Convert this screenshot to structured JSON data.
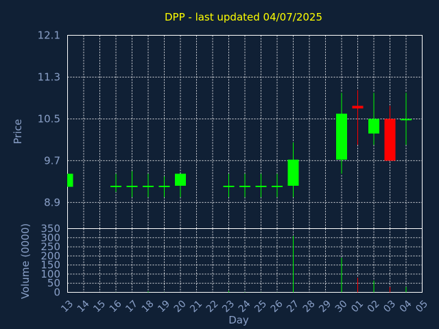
{
  "chart_data": {
    "type": "candlestick",
    "title": "DPP - last updated 04/07/2025",
    "colors": {
      "up": "#00ff00",
      "down": "#ff0000",
      "background": "#102035",
      "title": "#ffff00",
      "axis_text": "#8aa0c8",
      "grid": "#ffffff"
    },
    "grid": true,
    "price_panel": {
      "ylabel": "Price",
      "ylim": [
        8.4,
        12.1
      ],
      "yticks": [
        "8.9",
        "9.7",
        "10.5",
        "11.3",
        "12.1"
      ]
    },
    "volume_panel": {
      "ylabel": "Volume (0000)",
      "ylim": [
        0,
        350
      ],
      "yticks": [
        "0",
        "50",
        "100",
        "150",
        "200",
        "250",
        "300",
        "350"
      ]
    },
    "xlabel": "Day",
    "x_ticks": [
      "13",
      "14",
      "15",
      "16",
      "17",
      "18",
      "19",
      "20",
      "21",
      "22",
      "23",
      "24",
      "25",
      "26",
      "27",
      "28",
      "29",
      "30",
      "01",
      "02",
      "03",
      "04",
      "05"
    ],
    "candles": [
      {
        "day": "13",
        "open": 9.2,
        "close": 9.45,
        "high": 9.45,
        "low": 9.2,
        "volume": 0
      },
      {
        "day": "16",
        "open": 9.2,
        "close": 9.22,
        "high": 9.45,
        "low": 9.1,
        "volume": 1
      },
      {
        "day": "17",
        "open": 9.2,
        "close": 9.22,
        "high": 9.5,
        "low": 9.0,
        "volume": 0
      },
      {
        "day": "18",
        "open": 9.2,
        "close": 9.22,
        "high": 9.45,
        "low": 9.0,
        "volume": 5
      },
      {
        "day": "19",
        "open": 9.2,
        "close": 9.22,
        "high": 9.4,
        "low": 9.0,
        "volume": 1
      },
      {
        "day": "20",
        "open": 9.22,
        "close": 9.45,
        "high": 9.45,
        "low": 9.0,
        "volume": 0
      },
      {
        "day": "23",
        "open": 9.2,
        "close": 9.22,
        "high": 9.45,
        "low": 9.0,
        "volume": 8
      },
      {
        "day": "24",
        "open": 9.2,
        "close": 9.22,
        "high": 9.45,
        "low": 9.0,
        "volume": 2
      },
      {
        "day": "25",
        "open": 9.2,
        "close": 9.22,
        "high": 9.45,
        "low": 9.0,
        "volume": 1
      },
      {
        "day": "26",
        "open": 9.2,
        "close": 9.22,
        "high": 9.45,
        "low": 9.0,
        "volume": 1
      },
      {
        "day": "27",
        "open": 9.22,
        "close": 9.72,
        "high": 10.05,
        "low": 9.0,
        "volume": 310
      },
      {
        "day": "30",
        "open": 9.72,
        "close": 10.6,
        "high": 11.0,
        "low": 9.45,
        "volume": 190
      },
      {
        "day": "01",
        "open": 10.75,
        "close": 10.7,
        "high": 11.05,
        "low": 10.0,
        "volume": 80
      },
      {
        "day": "02",
        "open": 10.22,
        "close": 10.5,
        "high": 11.0,
        "low": 10.0,
        "volume": 65
      },
      {
        "day": "03",
        "open": 10.5,
        "close": 9.7,
        "high": 10.75,
        "low": 9.7,
        "volume": 30
      },
      {
        "day": "04",
        "open": 10.48,
        "close": 10.5,
        "high": 11.0,
        "low": 10.0,
        "volume": 30
      }
    ]
  }
}
